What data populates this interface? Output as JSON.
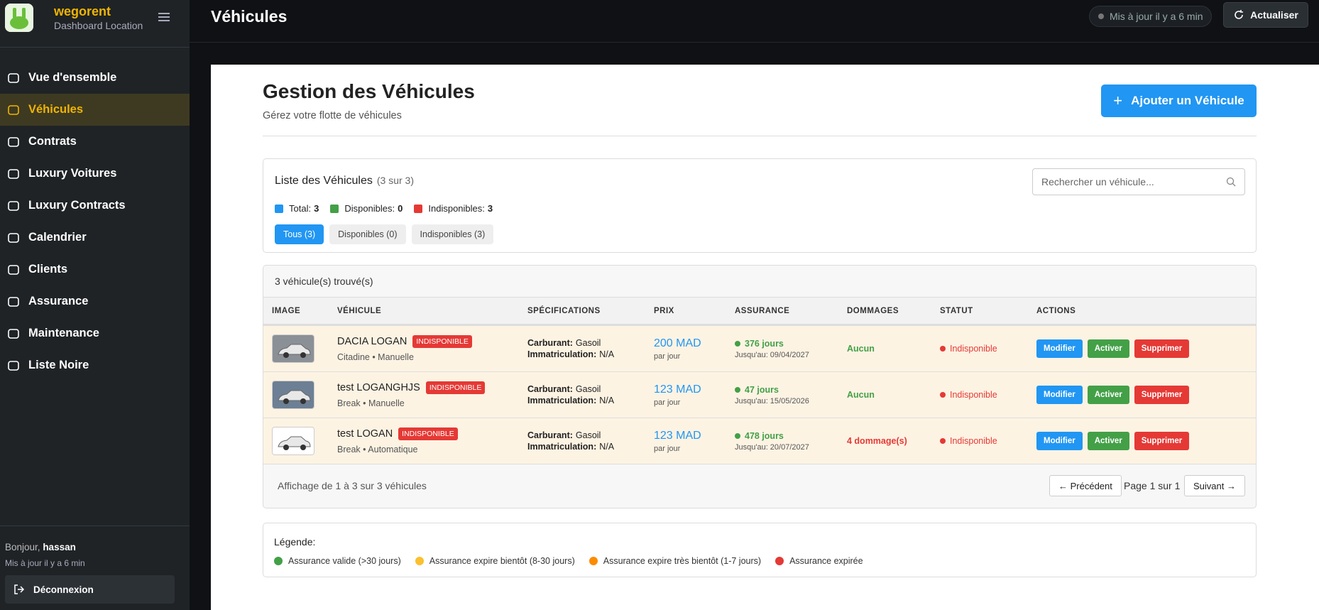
{
  "sidebar": {
    "brand": "wegorent",
    "subtitle": "Dashboard Location",
    "menu": [
      "Vue d'ensemble",
      "Véhicules",
      "Contrats",
      "Luxury Voitures",
      "Luxury Contracts",
      "Calendrier",
      "Clients",
      "Assurance",
      "Maintenance",
      "Liste Noire"
    ],
    "greeting": "Bonjour,",
    "user": "hassan",
    "updated": "Mis à jour il y a 6 min",
    "logout": "Déconnexion"
  },
  "topbar": {
    "title": "Véhicules",
    "status": "Mis à jour il y a 6 min",
    "refresh": "Actualiser"
  },
  "page": {
    "title": "Gestion des Véhicules",
    "subtitle": "Gérez votre flotte de véhicules",
    "add_button": "Ajouter un Véhicule"
  },
  "list": {
    "title": "Liste des Véhicules",
    "count": "(3 sur 3)",
    "search_placeholder": "Rechercher un véhicule...",
    "stats": [
      {
        "label": "Total:",
        "value": 3,
        "color": "#2196f3"
      },
      {
        "label": "Disponibles:",
        "value": 0,
        "color": "#43a047"
      },
      {
        "label": "Indisponibles:",
        "value": 3,
        "color": "#e53935"
      }
    ],
    "filters": [
      "Tous (3)",
      "Disponibles (0)",
      "Indisponibles (3)"
    ]
  },
  "table": {
    "found": "3 véhicule(s) trouvé(s)",
    "columns": [
      "IMAGE",
      "VÉHICULE",
      "SPÉCIFICATIONS",
      "PRIX",
      "ASSURANCE",
      "DOMMAGES",
      "STATUT",
      "ACTIONS"
    ],
    "rows": [
      {
        "name": "DACIA LOGAN",
        "badge": "INDISPONIBLE",
        "sub": "Citadine • Manuelle",
        "fuel_label": "Carburant:",
        "fuel": "Gasoil",
        "reg_label": "Immatriculation:",
        "reg": "N/A",
        "price": "200 MAD",
        "price_unit": "par jour",
        "insurance": "376 jours",
        "insurance_until": "Jusqu'au: 09/04/2027",
        "damage": "Aucun",
        "damage_color": "#43a047",
        "status": "Indisponible",
        "actions": [
          "Modifier",
          "Activer",
          "Supprimer"
        ]
      },
      {
        "name": "test LOGANGHJS",
        "badge": "INDISPONIBLE",
        "sub": "Break • Manuelle",
        "fuel_label": "Carburant:",
        "fuel": "Gasoil",
        "reg_label": "Immatriculation:",
        "reg": "N/A",
        "price": "123 MAD",
        "price_unit": "par jour",
        "insurance": "47 jours",
        "insurance_until": "Jusqu'au: 15/05/2026",
        "damage": "Aucun",
        "damage_color": "#43a047",
        "status": "Indisponible",
        "actions": [
          "Modifier",
          "Activer",
          "Supprimer"
        ]
      },
      {
        "name": "test LOGAN",
        "badge": "INDISPONIBLE",
        "sub": "Break • Automatique",
        "fuel_label": "Carburant:",
        "fuel": "Gasoil",
        "reg_label": "Immatriculation:",
        "reg": "N/A",
        "price": "123 MAD",
        "price_unit": "par jour",
        "insurance": "478 jours",
        "insurance_until": "Jusqu'au: 20/07/2027",
        "damage": "4 dommage(s)",
        "damage_color": "#e53935",
        "status": "Indisponible",
        "actions": [
          "Modifier",
          "Activer",
          "Supprimer"
        ]
      }
    ],
    "showing": "Affichage de 1 à 3 sur 3 véhicules",
    "prev": "← Précédent",
    "page_info": "Page 1 sur 1",
    "next": "Suivant →"
  },
  "legend": {
    "title": "Légende:",
    "items": [
      {
        "label": "Assurance valide (>30 jours)",
        "color": "#43a047"
      },
      {
        "label": "Assurance expire bientôt (8-30 jours)",
        "color": "#fbc02d"
      },
      {
        "label": "Assurance expire très bientôt (1-7 jours)",
        "color": "#fb8c00"
      },
      {
        "label": "Assurance expirée",
        "color": "#e53935"
      }
    ]
  }
}
